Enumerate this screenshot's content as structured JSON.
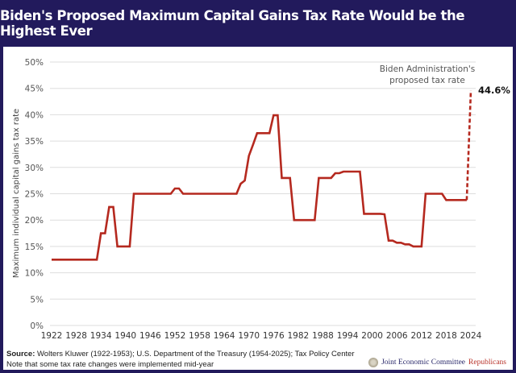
{
  "header": {
    "title": "Biden's Proposed Maximum Capital Gains Tax Rate Would be the Highest Ever"
  },
  "footer": {
    "source_label": "Source:",
    "source_text": " Wolters Kluwer (1922-1953); U.S. Department of the Treasury (1954-2025); Tax Policy Center",
    "note": "Note that some tax rate changes were implemented mid-year",
    "logo_main": "Joint Economic Committee",
    "logo_party": "Republicans",
    "logo_icon": "congressional-seal-icon"
  },
  "colors": {
    "header_bg": "#221a5c",
    "line": "#b5291f",
    "grid": "#dddddd"
  },
  "chart_data": {
    "type": "line",
    "title": "Biden's Proposed Maximum Capital Gains Tax Rate Would be the Highest Ever",
    "xlabel": "",
    "ylabel": "Maximum individual capital gains tax rate",
    "xlim": [
      1922,
      2024
    ],
    "ylim": [
      0,
      50
    ],
    "y_ticks": [
      "0%",
      "5%",
      "10%",
      "15%",
      "20%",
      "25%",
      "30%",
      "35%",
      "40%",
      "45%",
      "50%"
    ],
    "y_tick_values": [
      0,
      5,
      10,
      15,
      20,
      25,
      30,
      35,
      40,
      45,
      50
    ],
    "x_ticks": [
      "1922",
      "1928",
      "1934",
      "1940",
      "1946",
      "1952",
      "1958",
      "1964",
      "1970",
      "1976",
      "1982",
      "1988",
      "1994",
      "2000",
      "2006",
      "2012",
      "2018",
      "2024"
    ],
    "x_tick_values": [
      1922,
      1928,
      1934,
      1940,
      1946,
      1952,
      1958,
      1964,
      1970,
      1976,
      1982,
      1988,
      1994,
      2000,
      2006,
      2012,
      2018,
      2024
    ],
    "grid": true,
    "legend": "none",
    "series": [
      {
        "name": "Maximum capital gains tax rate",
        "style": "solid",
        "x": [
          1922,
          1933,
          1934,
          1935,
          1936,
          1937,
          1938,
          1941,
          1942,
          1951,
          1952,
          1953,
          1954,
          1967,
          1968,
          1969,
          1970,
          1971,
          1972,
          1975,
          1976,
          1977,
          1978,
          1979,
          1980,
          1981,
          1986,
          1987,
          1990,
          1991,
          1992,
          1993,
          1997,
          1998,
          2002,
          2003,
          2004,
          2005,
          2006,
          2007,
          2008,
          2009,
          2010,
          2012,
          2013,
          2017,
          2018,
          2023
        ],
        "values": [
          12.5,
          12.5,
          17.5,
          17.5,
          22.5,
          22.5,
          15,
          15,
          25,
          25,
          26,
          26,
          25,
          25,
          26.9,
          27.5,
          32.2,
          34.3,
          36.5,
          36.5,
          39.9,
          39.9,
          28,
          28,
          28,
          20,
          20,
          28,
          28,
          28.9,
          28.9,
          29.2,
          29.2,
          21.2,
          21.2,
          21.1,
          16.1,
          16.1,
          15.7,
          15.7,
          15.4,
          15.4,
          15,
          15,
          25,
          25,
          23.8,
          23.8
        ]
      },
      {
        "name": "Biden Administration's proposed tax rate",
        "style": "dashed",
        "x": [
          2023,
          2024
        ],
        "values": [
          23.8,
          44.6
        ]
      }
    ],
    "annotations": [
      {
        "text_line1": "Biden Administration's",
        "text_line2": "proposed tax rate",
        "x": 2024,
        "y": 44.6
      },
      {
        "text": "44.6%",
        "x": 2024,
        "y": 44.6
      }
    ]
  }
}
